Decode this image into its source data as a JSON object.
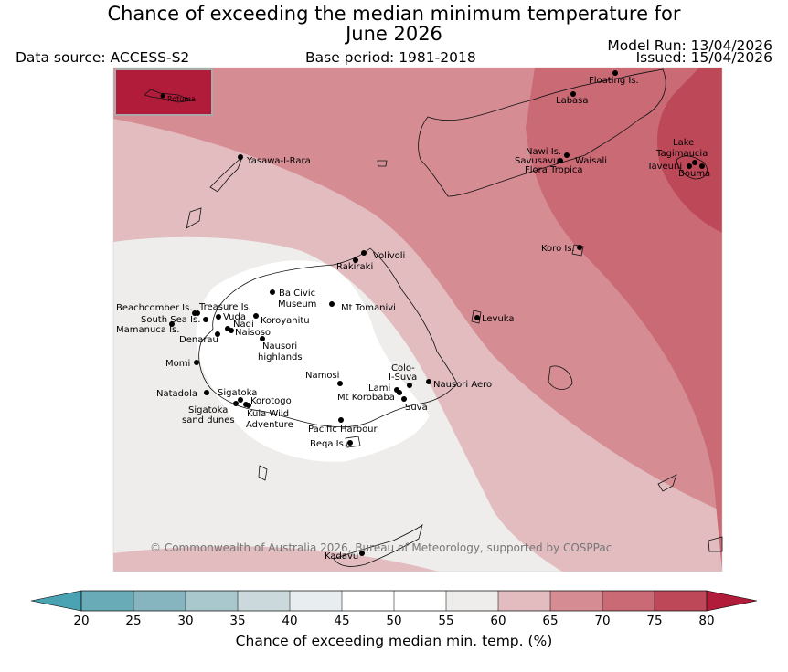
{
  "title_line1": "Chance of exceeding the median minimum temperature for",
  "title_line2": "June 2026",
  "data_source": "Data source: ACCESS-S2",
  "base_period": "Base period: 1981-2018",
  "model_run": "Model Run: 13/04/2026",
  "issued": "Issued: 15/04/2026",
  "copyright": "© Commonwealth of Australia 2026, Bureau of Meteorology, supported by COSPPac",
  "inset_label": "Rotuma",
  "colorbar": {
    "ticks": [
      "20",
      "25",
      "30",
      "35",
      "40",
      "45",
      "50",
      "55",
      "60",
      "65",
      "70",
      "75",
      "80"
    ],
    "title": "Chance of exceeding median min. temp. (%)",
    "colors": [
      "#6aabb8",
      "#86b5c0",
      "#a8c8cd",
      "#cbd9dd",
      "#e8eef0",
      "#ffffff",
      "#ffffff",
      "#eeedeb",
      "#e2bcbf",
      "#d58c93",
      "#c96a75",
      "#bd4857"
    ],
    "low_arrow": "#4aa3b3",
    "high_arrow": "#b11c3a"
  },
  "map_colors": {
    "band_55_60": "#eeedeb",
    "band_60_65": "#e2bcbf",
    "band_65_70": "#d58c93",
    "band_70_75": "#c96a75",
    "band_75_80": "#bd4857",
    "below_55": "#ffffff",
    "inset": "#b11c3a"
  },
  "places": [
    {
      "name": "Floating Is."
    },
    {
      "name": "Labasa"
    },
    {
      "name": "Nawi Is."
    },
    {
      "name": "Savusavu"
    },
    {
      "name": "Waisali"
    },
    {
      "name": "Flora Tropica"
    },
    {
      "name": "Lake"
    },
    {
      "name": "Tagimaucia"
    },
    {
      "name": "Taveuni"
    },
    {
      "name": "Bouma"
    },
    {
      "name": "Yasawa-I-Rara"
    },
    {
      "name": "Volivoli"
    },
    {
      "name": "Rakiraki"
    },
    {
      "name": "Koro Is."
    },
    {
      "name": "Levuka"
    },
    {
      "name": "Ba Civic"
    },
    {
      "name": "Museum"
    },
    {
      "name": "Mt Tomanivi"
    },
    {
      "name": "Beachcomber Is."
    },
    {
      "name": "Treasure Is."
    },
    {
      "name": "South Sea Is."
    },
    {
      "name": "Vuda"
    },
    {
      "name": "Koroyanitu"
    },
    {
      "name": "Nadi"
    },
    {
      "name": "Naisoso"
    },
    {
      "name": "Mamanuca Is."
    },
    {
      "name": "Denarau"
    },
    {
      "name": "Nausori"
    },
    {
      "name": "highlands"
    },
    {
      "name": "Momi"
    },
    {
      "name": "Namosi"
    },
    {
      "name": "Colo-"
    },
    {
      "name": "I-Suva"
    },
    {
      "name": "Lami"
    },
    {
      "name": "Nausori Aero"
    },
    {
      "name": "Mt Korobaba"
    },
    {
      "name": "Suva"
    },
    {
      "name": "Natadola"
    },
    {
      "name": "Sigatoka"
    },
    {
      "name": "Korotogo"
    },
    {
      "name": "Sigatoka"
    },
    {
      "name": "sand dunes"
    },
    {
      "name": "Kula Wild"
    },
    {
      "name": "Adventure"
    },
    {
      "name": "Pacific Harbour"
    },
    {
      "name": "Beqa Is."
    },
    {
      "name": "Kadavu"
    }
  ]
}
